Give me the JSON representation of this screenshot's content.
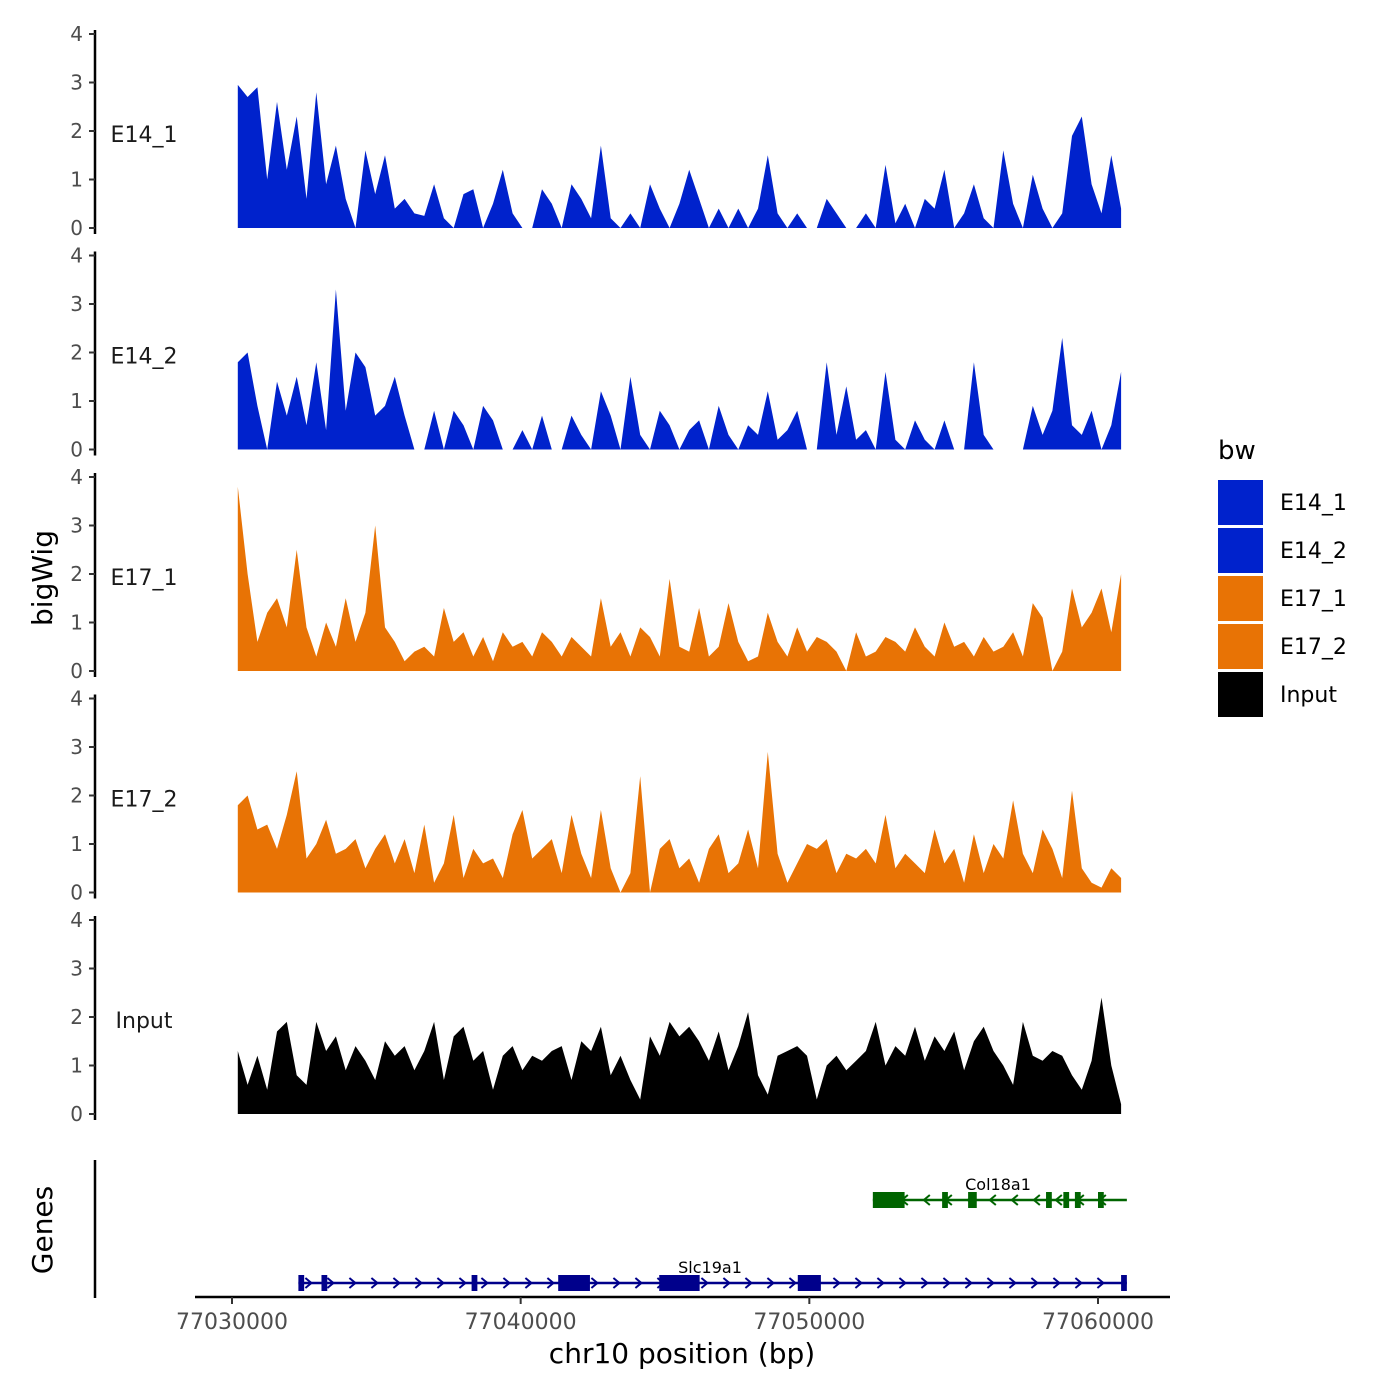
{
  "chart_data": {
    "type": "area",
    "x": [
      77030200,
      77030540,
      77030880,
      77031220,
      77031560,
      77031900,
      77032240,
      77032580,
      77032920,
      77033260,
      77033600,
      77033940,
      77034280,
      77034620,
      77034960,
      77035300,
      77035640,
      77035980,
      77036320,
      77036660,
      77037000,
      77037340,
      77037680,
      77038020,
      77038360,
      77038700,
      77039040,
      77039380,
      77039720,
      77040060,
      77040400,
      77040740,
      77041080,
      77041420,
      77041760,
      77042100,
      77042440,
      77042780,
      77043120,
      77043460,
      77043800,
      77044140,
      77044480,
      77044820,
      77045160,
      77045500,
      77045840,
      77046180,
      77046520,
      77046860,
      77047200,
      77047540,
      77047880,
      77048220,
      77048560,
      77048900,
      77049240,
      77049580,
      77049920,
      77050260,
      77050600,
      77050940,
      77051280,
      77051620,
      77051960,
      77052300,
      77052640,
      77052980,
      77053320,
      77053660,
      77054000,
      77054340,
      77054680,
      77055020,
      77055360,
      77055700,
      77056040,
      77056380,
      77056720,
      77057060,
      77057400,
      77057740,
      77058080,
      77058420,
      77058760,
      77059100,
      77059440,
      77059780,
      77060120,
      77060460,
      77060800
    ],
    "series": [
      {
        "name": "E14_1",
        "color": "#0022CC",
        "values": [
          2.95,
          2.7,
          2.9,
          1.0,
          2.6,
          1.2,
          2.3,
          0.6,
          2.8,
          0.9,
          1.7,
          0.6,
          0.0,
          1.6,
          0.7,
          1.5,
          0.4,
          0.6,
          0.3,
          0.25,
          0.9,
          0.2,
          0.0,
          0.7,
          0.8,
          0.0,
          0.5,
          1.2,
          0.3,
          0.0,
          0.0,
          0.8,
          0.5,
          0.0,
          0.9,
          0.6,
          0.2,
          1.7,
          0.2,
          0.0,
          0.3,
          0.0,
          0.9,
          0.4,
          0.0,
          0.5,
          1.2,
          0.6,
          0.0,
          0.4,
          0.0,
          0.4,
          0.0,
          0.4,
          1.5,
          0.3,
          0.0,
          0.3,
          0.0,
          0.0,
          0.6,
          0.3,
          0.0,
          0.0,
          0.3,
          0.0,
          1.3,
          0.1,
          0.5,
          0.0,
          0.6,
          0.4,
          1.2,
          0.0,
          0.3,
          0.9,
          0.2,
          0.0,
          1.6,
          0.5,
          0.0,
          1.1,
          0.4,
          0.0,
          0.3,
          1.9,
          2.3,
          0.9,
          0.3,
          1.5,
          0.4
        ]
      },
      {
        "name": "E14_2",
        "color": "#0022CC",
        "values": [
          1.8,
          2.0,
          0.9,
          0.0,
          1.4,
          0.7,
          1.5,
          0.5,
          1.8,
          0.4,
          3.3,
          0.8,
          2.0,
          1.7,
          0.7,
          0.9,
          1.5,
          0.7,
          0.0,
          0.0,
          0.8,
          0.0,
          0.8,
          0.5,
          0.0,
          0.9,
          0.6,
          0.0,
          0.0,
          0.4,
          0.0,
          0.7,
          0.0,
          0.0,
          0.7,
          0.3,
          0.0,
          1.2,
          0.7,
          0.0,
          1.5,
          0.3,
          0.0,
          0.8,
          0.5,
          0.0,
          0.4,
          0.6,
          0.0,
          0.9,
          0.3,
          0.0,
          0.5,
          0.3,
          1.2,
          0.2,
          0.4,
          0.8,
          0.0,
          0.0,
          1.8,
          0.3,
          1.3,
          0.2,
          0.4,
          0.0,
          1.6,
          0.2,
          0.0,
          0.6,
          0.2,
          0.0,
          0.6,
          0.0,
          0.0,
          1.8,
          0.3,
          0.0,
          0.0,
          0.0,
          0.0,
          0.9,
          0.3,
          0.8,
          2.3,
          0.5,
          0.3,
          0.8,
          0.0,
          0.5,
          1.6
        ]
      },
      {
        "name": "E17_1",
        "color": "#E87305",
        "values": [
          3.8,
          2.0,
          0.6,
          1.2,
          1.5,
          0.9,
          2.5,
          0.9,
          0.3,
          1.0,
          0.5,
          1.5,
          0.6,
          1.2,
          3.0,
          0.9,
          0.6,
          0.2,
          0.4,
          0.5,
          0.3,
          1.3,
          0.6,
          0.8,
          0.3,
          0.7,
          0.2,
          0.8,
          0.5,
          0.6,
          0.3,
          0.8,
          0.6,
          0.3,
          0.7,
          0.5,
          0.3,
          1.5,
          0.5,
          0.8,
          0.3,
          0.9,
          0.7,
          0.3,
          1.9,
          0.5,
          0.4,
          1.3,
          0.3,
          0.5,
          1.4,
          0.6,
          0.2,
          0.3,
          1.2,
          0.6,
          0.3,
          0.9,
          0.4,
          0.7,
          0.6,
          0.4,
          0.0,
          0.8,
          0.3,
          0.4,
          0.7,
          0.6,
          0.4,
          0.9,
          0.5,
          0.3,
          1.0,
          0.5,
          0.6,
          0.3,
          0.7,
          0.4,
          0.5,
          0.8,
          0.3,
          1.4,
          1.1,
          0.0,
          0.4,
          1.7,
          0.9,
          1.2,
          1.7,
          0.8,
          2.0
        ]
      },
      {
        "name": "E17_2",
        "color": "#E87305",
        "values": [
          1.8,
          2.0,
          1.3,
          1.4,
          0.9,
          1.6,
          2.5,
          0.7,
          1.0,
          1.5,
          0.8,
          0.9,
          1.1,
          0.5,
          0.9,
          1.2,
          0.6,
          1.1,
          0.4,
          1.4,
          0.2,
          0.6,
          1.6,
          0.3,
          0.9,
          0.6,
          0.7,
          0.3,
          1.2,
          1.7,
          0.7,
          0.9,
          1.1,
          0.4,
          1.6,
          0.8,
          0.3,
          1.7,
          0.5,
          0.0,
          0.4,
          2.4,
          0.0,
          0.9,
          1.1,
          0.5,
          0.7,
          0.2,
          0.9,
          1.2,
          0.4,
          0.6,
          1.3,
          0.5,
          2.9,
          0.8,
          0.2,
          0.6,
          1.0,
          0.9,
          1.1,
          0.4,
          0.8,
          0.7,
          0.9,
          0.6,
          1.6,
          0.5,
          0.8,
          0.6,
          0.4,
          1.3,
          0.6,
          0.9,
          0.2,
          1.2,
          0.4,
          1.0,
          0.7,
          1.9,
          0.8,
          0.4,
          1.3,
          0.9,
          0.3,
          2.1,
          0.5,
          0.2,
          0.1,
          0.5,
          0.3
        ]
      },
      {
        "name": "Input",
        "color": "#000000",
        "values": [
          1.3,
          0.6,
          1.2,
          0.5,
          1.7,
          1.9,
          0.8,
          0.6,
          1.9,
          1.3,
          1.6,
          0.9,
          1.4,
          1.1,
          0.7,
          1.5,
          1.2,
          1.4,
          0.9,
          1.3,
          1.9,
          0.7,
          1.6,
          1.8,
          1.1,
          1.3,
          0.5,
          1.2,
          1.4,
          0.9,
          1.2,
          1.1,
          1.3,
          1.4,
          0.7,
          1.5,
          1.3,
          1.8,
          0.8,
          1.2,
          0.7,
          0.3,
          1.6,
          1.2,
          1.9,
          1.6,
          1.8,
          1.5,
          1.1,
          1.7,
          0.9,
          1.4,
          2.1,
          0.8,
          0.4,
          1.2,
          1.3,
          1.4,
          1.2,
          0.3,
          1.0,
          1.2,
          0.9,
          1.1,
          1.3,
          1.9,
          1.0,
          1.4,
          1.2,
          1.8,
          1.1,
          1.6,
          1.3,
          1.7,
          0.9,
          1.5,
          1.8,
          1.3,
          1.0,
          0.6,
          1.9,
          1.2,
          1.1,
          1.3,
          1.2,
          0.8,
          0.5,
          1.1,
          2.4,
          1.0,
          0.2
        ]
      }
    ],
    "xlabel": "chr10 position (bp)",
    "ylabel": "bigWig",
    "xlim": [
      77030000,
      77061000
    ],
    "ylim": [
      0,
      4
    ],
    "y_ticks": [
      "0",
      "1",
      "2",
      "3",
      "4"
    ],
    "x_ticks": [
      "77030000",
      "77040000",
      "77050000",
      "77060000"
    ],
    "x_tick_values": [
      77030000,
      77040000,
      77050000,
      77060000
    ],
    "legend": {
      "title": "bw",
      "placement": "right",
      "entries": [
        "E14_1",
        "E14_2",
        "E17_1",
        "E17_2",
        "Input"
      ]
    },
    "genes_panel": {
      "ylabel": "Genes",
      "genes": [
        {
          "name": "Col18a1",
          "strand": "-",
          "color": "#006400",
          "start": 77052200,
          "end": 77061000,
          "exons": [
            [
              77052200,
              77053300
            ],
            [
              77054600,
              77054800
            ],
            [
              77055500,
              77055800
            ],
            [
              77058200,
              77058400
            ],
            [
              77058800,
              77059000
            ],
            [
              77059200,
              77059400
            ],
            [
              77060000,
              77060200
            ]
          ]
        },
        {
          "name": "Slc19a1",
          "strand": "+",
          "color": "#00008B",
          "start": 77032300,
          "end": 77061000,
          "exons": [
            [
              77032300,
              77032500
            ],
            [
              77033100,
              77033300
            ],
            [
              77038300,
              77038500
            ],
            [
              77041300,
              77042400
            ],
            [
              77044800,
              77046200
            ],
            [
              77049600,
              77050400
            ],
            [
              77060800,
              77061000
            ]
          ]
        }
      ]
    }
  }
}
